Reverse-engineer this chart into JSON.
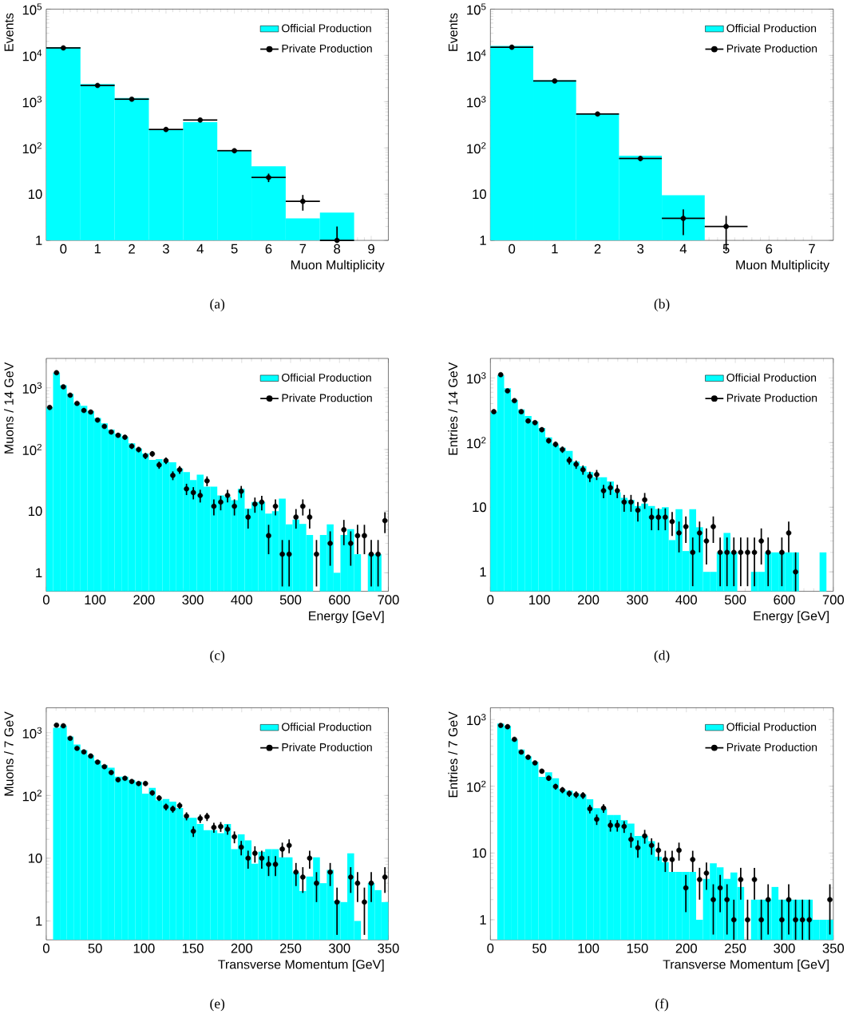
{
  "chart_data": [
    {
      "type": "histogram",
      "xlabel": "Muon Multiplicity",
      "ylabel": "Events",
      "log": "y",
      "legend": "top right",
      "annotations": [
        "(a)"
      ],
      "xlim": [
        -0.5,
        9.5
      ],
      "ylim": [
        1,
        100000
      ],
      "xticks": [
        0,
        1,
        2,
        3,
        4,
        5,
        6,
        7,
        8,
        9
      ],
      "yticks": [
        1,
        10,
        {
          "value": 100,
          "label": "10$^{2}$"
        },
        {
          "value": 1000,
          "label": "10$^{3}$"
        },
        {
          "value": 10000,
          "label": "10$^{4}$"
        },
        {
          "value": 100000,
          "label": "10$^{5}$"
        }
      ],
      "bins": [
        -0.5,
        0.5,
        1.5,
        2.5,
        3.5,
        4.5,
        5.5,
        6.5,
        7.5,
        8.5,
        9.5
      ],
      "series": [
        {
          "name": "Official Production",
          "color": "#00ffff",
          "values": [
            15000,
            2400,
            1200,
            250,
            360,
            88,
            40,
            3,
            4,
            1
          ]
        },
        {
          "name": "Private Production",
          "type": "scatter",
          "marker": "circle",
          "color": "#000000",
          "x": [
            0,
            1,
            2,
            3,
            4,
            5,
            6,
            7,
            8
          ],
          "values": [
            14500,
            2240,
            1130,
            250,
            400,
            87,
            23,
            7,
            1
          ],
          "errors": [
            null,
            null,
            null,
            15.8,
            null,
            9.3,
            4.8,
            2.6,
            [
              1,
              2
            ]
          ],
          "xerrors": [
            0.5,
            0.5,
            0.5,
            0.5,
            0.5,
            0.5,
            0.5,
            0.5,
            0.5
          ]
        }
      ]
    },
    {
      "type": "histogram",
      "xlabel": "Muon Multiplicity",
      "ylabel": "Events",
      "log": "y",
      "legend": "top right",
      "annotations": [
        "(b)"
      ],
      "xlim": [
        -0.5,
        7.5
      ],
      "ylim": [
        1,
        100000
      ],
      "xticks": [
        0,
        1,
        2,
        3,
        4,
        5,
        6,
        7
      ],
      "yticks": [
        1,
        10,
        {
          "value": 100,
          "label": "10$^{2}$"
        },
        {
          "value": 1000,
          "label": "10$^{3}$"
        },
        {
          "value": 10000,
          "label": "10$^{4}$"
        },
        {
          "value": 100000,
          "label": "10$^{5}$"
        }
      ],
      "bins": [
        -0.5,
        0.5,
        1.5,
        2.5,
        3.5,
        4.5,
        5.5,
        6.5,
        7.5
      ],
      "series": [
        {
          "name": "Official Production",
          "color": "#00ffff",
          "values": [
            16000,
            2900,
            550,
            68,
            9.5,
            1,
            1,
            1
          ]
        },
        {
          "name": "Private Production",
          "type": "scatter",
          "marker": "circle",
          "color": "#000000",
          "x": [
            0,
            1,
            2,
            3,
            4,
            5
          ],
          "values": [
            15000,
            2800,
            540,
            59,
            3,
            2
          ],
          "errors": [
            null,
            null,
            null,
            7.7,
            1.7,
            1.4
          ],
          "xerrors": [
            0.5,
            0.5,
            0.5,
            0.5,
            0.5,
            0.5
          ]
        }
      ]
    },
    {
      "type": "histogram",
      "xlabel": "Energy [GeV]",
      "ylabel": "Muons / 14 GeV",
      "log": "y",
      "legend": "top right",
      "annotations": [
        "(c)"
      ],
      "xlim": [
        0,
        700
      ],
      "ylim": [
        0.5,
        3000
      ],
      "xticks": [
        0,
        100,
        200,
        300,
        400,
        500,
        600,
        700
      ],
      "yticks": [
        1,
        10,
        {
          "value": 100,
          "label": "10$^{2}$"
        },
        {
          "value": 1000,
          "label": "10$^{3}$"
        }
      ],
      "bins": [
        0,
        14,
        28,
        42,
        56,
        70,
        84,
        98,
        112,
        126,
        140,
        154,
        168,
        182,
        196,
        210,
        224,
        238,
        252,
        266,
        280,
        294,
        308,
        322,
        336,
        350,
        364,
        378,
        392,
        406,
        420,
        434,
        448,
        462,
        476,
        490,
        504,
        518,
        532,
        546,
        560,
        574,
        588,
        602,
        616,
        630,
        644,
        658,
        672,
        686,
        700
      ],
      "series": [
        {
          "name": "Official Production",
          "color": "#00ffff",
          "values": [
            480,
            1760,
            1100,
            800,
            560,
            510,
            420,
            325,
            265,
            210,
            180,
            160,
            126,
            104,
            86,
            68,
            70,
            63,
            62,
            49,
            43,
            32,
            39,
            25,
            25,
            18,
            17,
            15,
            23,
            11,
            14,
            14,
            9.1,
            10,
            16,
            6.1,
            7.3,
            6.2,
            4.1,
            null,
            4.1,
            6.1,
            1.0,
            4.1,
            5.1,
            2,
            null,
            2,
            2,
            null
          ]
        },
        {
          "name": "Private Production",
          "type": "scatter",
          "marker": "circle",
          "color": "#000000",
          "x": [
            7,
            21,
            35,
            49,
            63,
            77,
            91,
            105,
            119,
            133,
            147,
            161,
            175,
            189,
            203,
            217,
            231,
            245,
            259,
            273,
            287,
            301,
            315,
            329,
            343,
            357,
            371,
            385,
            399,
            413,
            427,
            441,
            455,
            469,
            483,
            497,
            511,
            525,
            539,
            553,
            567,
            581,
            595,
            609,
            623,
            637,
            651,
            665,
            679,
            693
          ],
          "values": [
            480,
            1760,
            1040,
            760,
            560,
            430,
            405,
            300,
            237,
            192,
            170,
            158,
            113,
            100,
            79,
            85,
            56,
            66,
            38,
            47,
            23,
            20,
            18,
            31,
            12,
            14,
            18,
            12,
            21,
            8,
            13,
            14,
            4,
            12,
            2,
            2,
            8,
            12,
            8,
            2,
            null,
            3,
            null,
            5,
            3,
            4,
            4,
            2,
            2,
            7
          ],
          "errors": [
            21.9,
            null,
            null,
            null,
            null,
            20.7,
            20.1,
            17.3,
            15.4,
            13.9,
            13,
            12.6,
            10.6,
            10,
            8.9,
            9.2,
            7.5,
            8.1,
            6.2,
            6.9,
            4.8,
            4.5,
            4.2,
            5.6,
            3.5,
            3.7,
            4.2,
            3.5,
            4.6,
            2.8,
            3.6,
            3.7,
            2,
            3.5,
            1.4,
            1.4,
            2.8,
            3.5,
            2.8,
            1.4,
            null,
            1.7,
            null,
            2.2,
            1.7,
            2,
            2,
            1.4,
            1.4,
            2.6
          ]
        }
      ]
    },
    {
      "type": "histogram",
      "xlabel": "Energy [GeV]",
      "ylabel": "Entries / 14 GeV",
      "log": "y",
      "legend": "top right",
      "annotations": [
        "(d)"
      ],
      "xlim": [
        0,
        700
      ],
      "ylim": [
        0.5,
        2000
      ],
      "xticks": [
        0,
        100,
        200,
        300,
        400,
        500,
        600,
        700
      ],
      "yticks": [
        1,
        10,
        {
          "value": 100,
          "label": "10$^{2}$"
        },
        {
          "value": 1000,
          "label": "10$^{3}$"
        }
      ],
      "bins": [
        0,
        14,
        28,
        42,
        56,
        70,
        84,
        98,
        112,
        126,
        140,
        154,
        168,
        182,
        196,
        210,
        224,
        238,
        252,
        266,
        280,
        294,
        308,
        322,
        336,
        350,
        364,
        378,
        392,
        406,
        420,
        434,
        448,
        462,
        476,
        490,
        504,
        518,
        532,
        546,
        560,
        574,
        588,
        602,
        616,
        630,
        644,
        658,
        672,
        686,
        700
      ],
      "series": [
        {
          "name": "Official Production",
          "color": "#00ffff",
          "values": [
            300,
            1100,
            690,
            455,
            325,
            257,
            213,
            168,
            120,
            93,
            83,
            74,
            51,
            43,
            35,
            29,
            29,
            25,
            17,
            14,
            13,
            10.4,
            11.4,
            10.4,
            9.4,
            10,
            3.1,
            9.3,
            2.1,
            9.3,
            4.9,
            1,
            1,
            2,
            4,
            2,
            null,
            null,
            1,
            1,
            2,
            2,
            2,
            2,
            2,
            null,
            null,
            null,
            2,
            null
          ]
        },
        {
          "name": "Private Production",
          "type": "scatter",
          "marker": "circle",
          "color": "#000000",
          "x": [
            7,
            21,
            35,
            49,
            63,
            77,
            91,
            105,
            119,
            133,
            147,
            161,
            175,
            189,
            203,
            217,
            231,
            245,
            259,
            273,
            287,
            301,
            315,
            329,
            343,
            357,
            371,
            385,
            399,
            413,
            427,
            441,
            455,
            469,
            483,
            497,
            511,
            525,
            539,
            553,
            567,
            581,
            595,
            609,
            623
          ],
          "values": [
            300,
            1120,
            630,
            445,
            300,
            216,
            203,
            158,
            107,
            94,
            78,
            53,
            46,
            38,
            30,
            32,
            18,
            20,
            18,
            12,
            12,
            9,
            13,
            7,
            7,
            7,
            6,
            4,
            5,
            2,
            4,
            3,
            5,
            2,
            2,
            2,
            2,
            2,
            2,
            3,
            2,
            null,
            2,
            4,
            1
          ],
          "errors": [
            17.3,
            null,
            null,
            21.1,
            17.3,
            14.7,
            14.2,
            12.6,
            10.3,
            9.7,
            8.8,
            7.3,
            6.8,
            6.2,
            5.5,
            5.7,
            4.2,
            4.5,
            4.2,
            3.5,
            3.5,
            3,
            3.6,
            2.6,
            2.6,
            2.6,
            2.4,
            2,
            2.2,
            1.4,
            2,
            1.7,
            2.2,
            1.4,
            1.4,
            1.4,
            1.4,
            1.4,
            1.4,
            1.7,
            1.4,
            null,
            1.4,
            2,
            [
              0.5,
              2
            ]
          ]
        }
      ]
    },
    {
      "type": "histogram",
      "xlabel": "Transverse Momentum [GeV]",
      "ylabel": "Muons / 7 GeV",
      "log": "y",
      "legend": "top right",
      "annotations": [
        "(e)"
      ],
      "xlim": [
        0,
        350
      ],
      "ylim": [
        0.5,
        2500
      ],
      "xticks": [
        0,
        50,
        100,
        150,
        200,
        250,
        300,
        350
      ],
      "yticks": [
        1,
        10,
        {
          "value": 100,
          "label": "10$^{2}$"
        },
        {
          "value": 1000,
          "label": "10$^{3}$"
        }
      ],
      "bins": [
        0,
        7,
        14,
        21,
        28,
        35,
        42,
        49,
        56,
        63,
        70,
        77,
        84,
        91,
        98,
        105,
        112,
        119,
        126,
        133,
        140,
        147,
        154,
        161,
        168,
        175,
        182,
        189,
        196,
        203,
        210,
        217,
        224,
        231,
        238,
        245,
        252,
        259,
        266,
        273,
        280,
        287,
        294,
        301,
        308,
        315,
        322,
        329,
        336,
        343,
        350
      ],
      "series": [
        {
          "name": "Official Production",
          "color": "#00ffff",
          "values": [
            null,
            1200,
            1290,
            870,
            650,
            530,
            435,
            360,
            305,
            277,
            200,
            200,
            177,
            166,
            107,
            132,
            84,
            88,
            80,
            63,
            44,
            44,
            35,
            28,
            28,
            25,
            35,
            14,
            24,
            19.3,
            8.2,
            12.7,
            14,
            14,
            10.3,
            10.3,
            5.9,
            3,
            5.1,
            10.3,
            4,
            6.5,
            2.1,
            2,
            12,
            1,
            null,
            4,
            3.1,
            2
          ]
        },
        {
          "name": "Private Production",
          "type": "scatter",
          "marker": "circle",
          "color": "#000000",
          "x": [
            10.5,
            17.5,
            24.5,
            31.5,
            38.5,
            45.5,
            52.5,
            59.5,
            66.5,
            73.5,
            80.5,
            87.5,
            94.5,
            101.5,
            108.5,
            115.5,
            122.5,
            129.5,
            136.5,
            143.5,
            150.5,
            157.5,
            164.5,
            171.5,
            178.5,
            185.5,
            192.5,
            199.5,
            206.5,
            213.5,
            220.5,
            227.5,
            234.5,
            241.5,
            248.5,
            255.5,
            262.5,
            269.5,
            276.5,
            283.5,
            290.5,
            297.5,
            304.5,
            311.5,
            318.5,
            325.5,
            332.5,
            339.5,
            346.5
          ],
          "values": [
            1320,
            1290,
            815,
            565,
            495,
            425,
            340,
            288,
            232,
            178,
            188,
            167,
            155,
            155,
            110,
            91,
            66,
            61,
            69,
            47,
            27,
            43,
            46,
            31,
            32,
            29,
            22,
            15,
            10,
            12,
            10,
            8,
            8,
            14,
            16,
            6,
            5,
            10,
            4,
            null,
            6,
            2,
            null,
            5,
            4,
            2,
            4,
            null,
            5
          ],
          "errors": [
            null,
            null,
            null,
            null,
            22.2,
            20.6,
            18.4,
            17,
            15.2,
            13.3,
            13.7,
            12.9,
            12.4,
            12.4,
            10.5,
            9.5,
            8.1,
            7.8,
            8.3,
            6.9,
            5.2,
            6.6,
            6.8,
            5.6,
            5.7,
            5.4,
            4.7,
            3.9,
            3.2,
            3.5,
            3.2,
            2.8,
            2.8,
            3.7,
            4,
            2.4,
            2.2,
            3.2,
            2,
            null,
            2.4,
            1.4,
            null,
            2.2,
            2,
            1.4,
            2,
            null,
            2.2
          ]
        }
      ]
    },
    {
      "type": "histogram",
      "xlabel": "Transverse Momentum [GeV]",
      "ylabel": "Entries / 7 GeV",
      "log": "y",
      "legend": "top right",
      "annotations": [
        "(f)"
      ],
      "xlim": [
        0,
        350
      ],
      "ylim": [
        0.5,
        1500
      ],
      "xticks": [
        0,
        50,
        100,
        150,
        200,
        250,
        300,
        350
      ],
      "yticks": [
        1,
        10,
        {
          "value": 100,
          "label": "10$^{2}$"
        },
        {
          "value": 1000,
          "label": "10$^{3}$"
        }
      ],
      "bins": [
        0,
        7,
        14,
        21,
        28,
        35,
        42,
        49,
        56,
        63,
        70,
        77,
        84,
        91,
        98,
        105,
        112,
        119,
        126,
        133,
        140,
        147,
        154,
        161,
        168,
        175,
        182,
        189,
        196,
        203,
        210,
        217,
        224,
        231,
        238,
        245,
        252,
        259,
        266,
        273,
        280,
        287,
        294,
        301,
        308,
        315,
        322,
        329,
        336,
        343,
        350
      ],
      "series": [
        {
          "name": "Official Production",
          "color": "#00ffff",
          "values": [
            null,
            870,
            800,
            505,
            355,
            280,
            233,
            138,
            162,
            132,
            90,
            86,
            78,
            75,
            64,
            47,
            46,
            37,
            37,
            31,
            27.5,
            18,
            18,
            15,
            8.8,
            7.3,
            5.2,
            5.2,
            5.2,
            5.2,
            1,
            4.1,
            7,
            6.1,
            4.1,
            5.1,
            3.1,
            null,
            2,
            2,
            2,
            3.1,
            2,
            2,
            2,
            2,
            2,
            1,
            1,
            1
          ]
        },
        {
          "name": "Private Production",
          "type": "scatter",
          "marker": "circle",
          "color": "#000000",
          "x": [
            10.5,
            17.5,
            24.5,
            31.5,
            38.5,
            45.5,
            52.5,
            59.5,
            66.5,
            73.5,
            80.5,
            87.5,
            94.5,
            101.5,
            108.5,
            115.5,
            122.5,
            129.5,
            136.5,
            143.5,
            150.5,
            157.5,
            164.5,
            171.5,
            178.5,
            185.5,
            192.5,
            199.5,
            206.5,
            213.5,
            220.5,
            227.5,
            234.5,
            241.5,
            248.5,
            255.5,
            262.5,
            269.5,
            276.5,
            283.5,
            290.5,
            297.5,
            304.5,
            311.5,
            318.5,
            325.5,
            332.5,
            339.5,
            346.5
          ],
          "values": [
            815,
            780,
            505,
            325,
            272,
            224,
            168,
            132,
            99,
            88,
            78,
            75,
            73,
            46,
            32,
            47,
            26,
            26,
            25,
            16,
            12,
            18,
            13,
            11,
            8,
            8,
            11,
            3,
            8,
            4,
            5,
            2,
            3,
            2,
            1,
            4,
            1,
            4,
            1,
            2,
            null,
            1,
            2,
            1,
            1,
            1,
            null,
            null,
            2
          ],
          "errors": [
            null,
            null,
            22.5,
            18,
            16.5,
            15,
            13,
            11.5,
            9.9,
            9.4,
            8.8,
            8.7,
            8.5,
            6.8,
            5.7,
            6.9,
            5.1,
            5.1,
            5,
            4,
            3.5,
            4.2,
            3.6,
            3.3,
            2.8,
            2.8,
            3.3,
            1.7,
            2.8,
            2,
            2.2,
            1.4,
            1.7,
            1.4,
            [
              0.5,
              2
            ],
            2,
            [
              0.5,
              2
            ],
            2,
            [
              0.5,
              2
            ],
            1.4,
            null,
            [
              0.5,
              2
            ],
            1.4,
            [
              0.5,
              2
            ],
            [
              0.5,
              2
            ],
            [
              0.5,
              2
            ],
            null,
            null,
            1.4
          ]
        }
      ]
    }
  ]
}
